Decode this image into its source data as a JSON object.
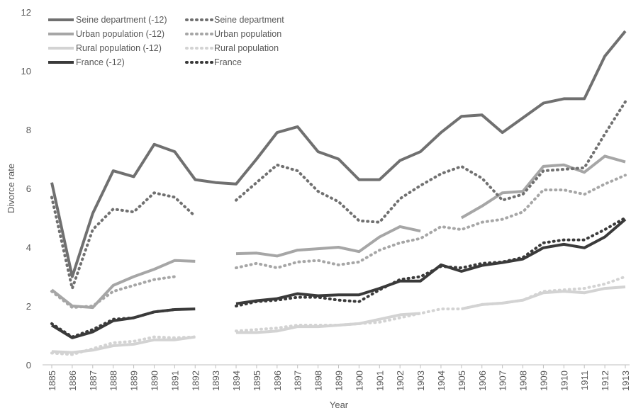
{
  "chart_data": {
    "type": "line",
    "x_label": "Year",
    "y_label": "Divorce rate",
    "categories": [
      "1885",
      "1886",
      "1887",
      "1888",
      "1889",
      "1890",
      "1891",
      "1892",
      "1893",
      "1894",
      "1895",
      "1896",
      "1897",
      "1898",
      "1899",
      "1900",
      "1901",
      "1902",
      "1903",
      "1904",
      "1905",
      "1906",
      "1907",
      "1908",
      "1909",
      "1910",
      "1911",
      "1912",
      "1913"
    ],
    "ylim": [
      0,
      12
    ],
    "yticks": [
      0,
      2,
      4,
      6,
      8,
      10,
      12
    ],
    "grid": false,
    "legend": "top-left",
    "series": [
      {
        "name": "Seine department (-12)",
        "color": "#707070",
        "line_style": "solid",
        "values": [
          6.2,
          3.0,
          5.15,
          6.6,
          6.4,
          7.5,
          7.25,
          6.3,
          6.2,
          6.15,
          7.0,
          7.9,
          8.1,
          7.25,
          7.0,
          6.3,
          6.3,
          6.95,
          7.25,
          7.9,
          8.45,
          8.5,
          7.9,
          8.4,
          8.9,
          9.05,
          9.05,
          10.5,
          11.35
        ]
      },
      {
        "name": "Urban population  (-12)",
        "color": "#a6a6a6",
        "line_style": "solid",
        "values": [
          2.55,
          2.0,
          1.95,
          2.7,
          3.0,
          3.25,
          3.55,
          3.52,
          null,
          3.78,
          3.8,
          3.7,
          3.9,
          3.95,
          4.0,
          3.85,
          4.35,
          4.7,
          4.55,
          null,
          5.0,
          5.4,
          5.85,
          5.9,
          6.75,
          6.8,
          6.55,
          7.1,
          6.9
        ]
      },
      {
        "name": "Rural population  (-12)",
        "color": "#d3d3d3",
        "line_style": "solid",
        "values": [
          0.45,
          0.42,
          0.5,
          0.65,
          0.7,
          0.85,
          0.85,
          0.95,
          null,
          1.1,
          1.1,
          1.15,
          1.3,
          1.3,
          1.35,
          1.4,
          1.55,
          1.7,
          1.75,
          null,
          1.9,
          2.05,
          2.1,
          2.2,
          2.45,
          2.5,
          2.45,
          2.6,
          2.65
        ]
      },
      {
        "name": "France (-12)",
        "color": "#3a3a3a",
        "line_style": "solid",
        "values": [
          1.35,
          0.92,
          1.12,
          1.5,
          1.6,
          1.8,
          1.88,
          1.9,
          null,
          2.08,
          2.18,
          2.25,
          2.42,
          2.35,
          2.38,
          2.38,
          2.6,
          2.85,
          2.85,
          3.4,
          3.18,
          3.38,
          3.48,
          3.6,
          3.98,
          4.1,
          3.98,
          4.35,
          4.95
        ]
      },
      {
        "name": "Seine department",
        "color": "#707070",
        "line_style": "dotted",
        "values": [
          5.7,
          2.6,
          4.6,
          5.3,
          5.2,
          5.85,
          5.7,
          5.05,
          null,
          5.6,
          6.2,
          6.8,
          6.6,
          5.9,
          5.55,
          4.9,
          4.85,
          5.65,
          6.1,
          6.5,
          6.75,
          6.35,
          5.6,
          5.8,
          6.6,
          6.65,
          6.7,
          7.85,
          8.95
        ]
      },
      {
        "name": "Urban population",
        "color": "#a6a6a6",
        "line_style": "dotted",
        "values": [
          2.5,
          1.95,
          2.0,
          2.5,
          2.7,
          2.9,
          3.0,
          null,
          null,
          3.3,
          3.45,
          3.3,
          3.5,
          3.55,
          3.4,
          3.5,
          3.9,
          4.15,
          4.3,
          4.7,
          4.6,
          4.85,
          4.95,
          5.2,
          5.95,
          5.95,
          5.8,
          6.15,
          6.45
        ]
      },
      {
        "name": "Rural population",
        "color": "#d3d3d3",
        "line_style": "dotted",
        "values": [
          0.4,
          0.35,
          0.55,
          0.75,
          0.8,
          0.95,
          0.92,
          0.95,
          null,
          1.15,
          1.2,
          1.25,
          1.35,
          1.35,
          1.35,
          1.4,
          1.45,
          1.6,
          1.75,
          1.9,
          1.9,
          2.05,
          2.1,
          2.2,
          2.5,
          2.55,
          2.6,
          2.75,
          3.0
        ]
      },
      {
        "name": "France",
        "color": "#3a3a3a",
        "line_style": "dotted",
        "values": [
          1.4,
          0.95,
          1.2,
          1.55,
          1.6,
          1.8,
          1.88,
          null,
          null,
          2.0,
          2.15,
          2.2,
          2.3,
          2.3,
          2.2,
          2.15,
          2.55,
          2.9,
          3.0,
          3.35,
          3.3,
          3.45,
          3.5,
          3.65,
          4.15,
          4.25,
          4.25,
          4.6,
          5.0
        ]
      }
    ]
  }
}
